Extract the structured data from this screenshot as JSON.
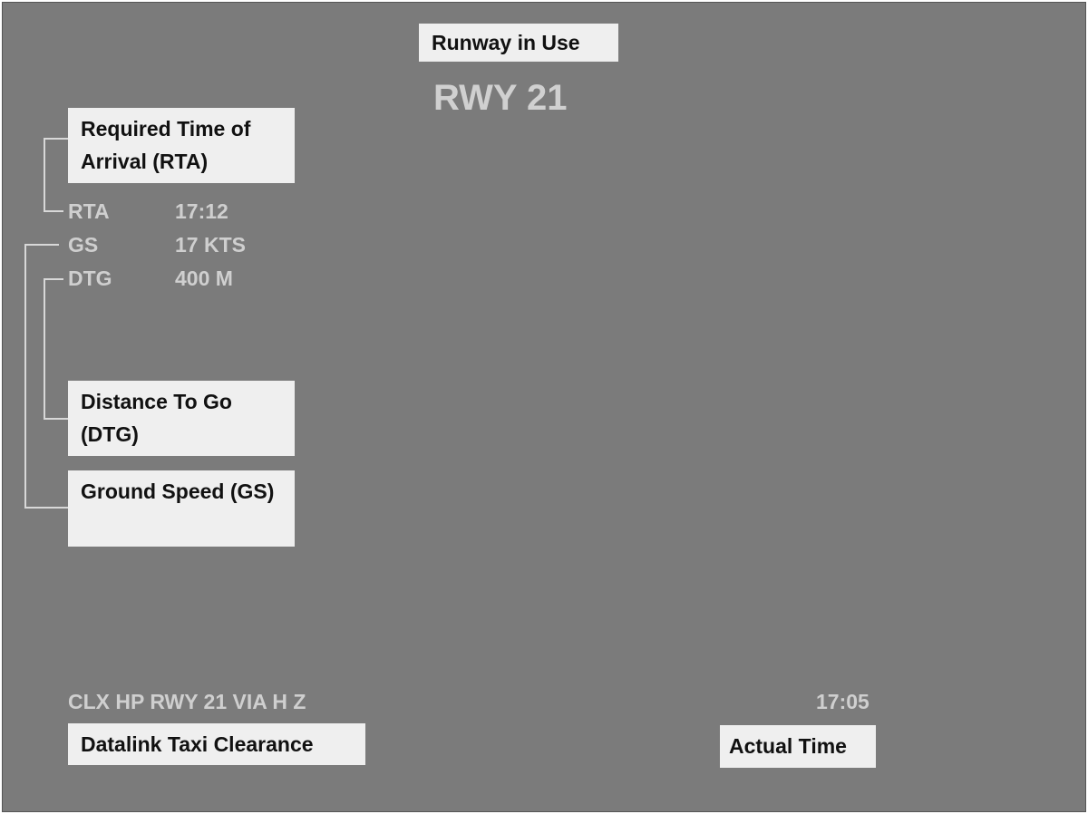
{
  "annotations": {
    "runway_in_use": "Runway in Use",
    "rta": "Required Time of Arrival (RTA)",
    "dtg": "Distance To Go (DTG)",
    "gs": "Ground Speed (GS)",
    "datalink": "Datalink Taxi Clearance",
    "actual_time": "Actual Time"
  },
  "display": {
    "runway": "RWY 21",
    "rows": [
      {
        "label": "RTA",
        "value": "17:12"
      },
      {
        "label": "GS",
        "value": "17 KTS"
      },
      {
        "label": "DTG",
        "value": "400 M"
      }
    ],
    "clearance": "CLX HP RWY 21 VIA H Z",
    "time": "17:05"
  }
}
